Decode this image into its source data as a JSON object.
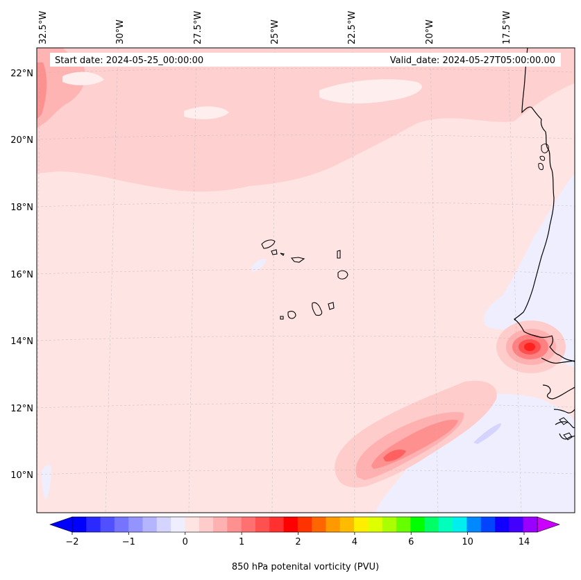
{
  "header": {
    "start_label": "Start date: 2024-05-25_00:00:00",
    "valid_label": "Valid_date: 2024-05-27T05:00:00.00"
  },
  "map": {
    "lon_labels": [
      "32.5°W",
      "30°W",
      "27.5°W",
      "25°W",
      "22.5°W",
      "20°W",
      "17.5°W"
    ],
    "lat_labels": [
      "22°N",
      "20°N",
      "18°N",
      "16°N",
      "14°N",
      "12°N",
      "10°N"
    ]
  },
  "colorbar": {
    "label": "850 hPa potenital vorticity (PVU)",
    "ticks": [
      "−2",
      "−1",
      "0",
      "1",
      "2",
      "4",
      "6",
      "10",
      "14"
    ],
    "colors": [
      "#0000ff",
      "#2a2aff",
      "#5050ff",
      "#7474ff",
      "#9494ff",
      "#b4b4ff",
      "#d4d4ff",
      "#eeeeff",
      "#ffe4e4",
      "#ffcccc",
      "#ffb0b0",
      "#ff9090",
      "#ff7070",
      "#ff5050",
      "#ff3030",
      "#ff0000",
      "#ff3300",
      "#ff6600",
      "#ff9900",
      "#ffbb00",
      "#ffee00",
      "#ddff00",
      "#aaff00",
      "#66ff00",
      "#00ff00",
      "#00ff66",
      "#00ffbb",
      "#00eeee",
      "#0088ff",
      "#0044ff",
      "#1100ff",
      "#4400ff",
      "#9900ff"
    ],
    "extend_min_color": "#0000ff",
    "extend_max_color": "#cc00ff"
  },
  "colors": {
    "background_pv": "#ffe4e4",
    "band_light": "#ffd0d0",
    "band_mid": "#ffb4b4",
    "high_pv": "#ff5050",
    "peak_pv": "#ff2020",
    "negative_pv": "#eeeeff",
    "coastline": "#000000"
  }
}
